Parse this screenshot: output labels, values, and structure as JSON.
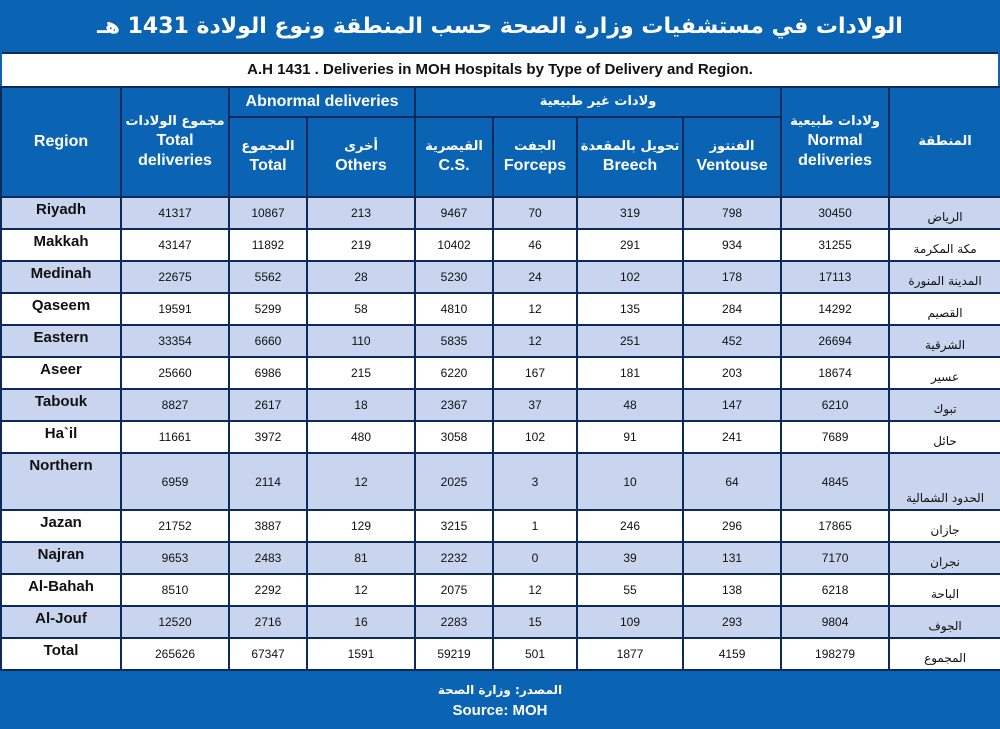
{
  "title_ar": "الولادات في مستشفيات وزارة الصحة حسب المنطقة ونوع الولادة 1431 هـ",
  "title_en": "A.H 1431 . Deliveries in MOH Hospitals by Type of Delivery and Region.",
  "header": {
    "region": "Region",
    "total_ar": "مجموع الولادات",
    "total_en": "Total deliveries",
    "abnormal_en": "Abnormal deliveries",
    "abnormal_ar": "ولادات غير طبيعية",
    "abn_total_ar": "المجموع",
    "abn_total_en": "Total",
    "others_ar": "أخرى",
    "others_en": "Others",
    "cs_ar": "القيصرية",
    "cs_en": "C.S.",
    "forceps_ar": "الجفت",
    "forceps_en": "Forceps",
    "breech_ar": "تحويل بالمقعدة",
    "breech_en": "Breech",
    "ventouse_ar": "الفنتوز",
    "ventouse_en": "Ventouse",
    "normal_ar": "ولادات طبيعية",
    "normal_en": "Normal deliveries",
    "region_ar": "المنطقة"
  },
  "rows": [
    {
      "region": "Riyadh",
      "total": "41317",
      "abn_total": "10867",
      "others": "213",
      "cs": "9467",
      "forceps": "70",
      "breech": "319",
      "ventouse": "798",
      "normal": "30450",
      "region_ar": "الرياض"
    },
    {
      "region": "Makkah",
      "total": "43147",
      "abn_total": "11892",
      "others": "219",
      "cs": "10402",
      "forceps": "46",
      "breech": "291",
      "ventouse": "934",
      "normal": "31255",
      "region_ar": "مكة المكرمة"
    },
    {
      "region": "Medinah",
      "total": "22675",
      "abn_total": "5562",
      "others": "28",
      "cs": "5230",
      "forceps": "24",
      "breech": "102",
      "ventouse": "178",
      "normal": "17113",
      "region_ar": "المدينة المنورة"
    },
    {
      "region": "Qaseem",
      "total": "19591",
      "abn_total": "5299",
      "others": "58",
      "cs": "4810",
      "forceps": "12",
      "breech": "135",
      "ventouse": "284",
      "normal": "14292",
      "region_ar": "القصيم"
    },
    {
      "region": "Eastern",
      "total": "33354",
      "abn_total": "6660",
      "others": "110",
      "cs": "5835",
      "forceps": "12",
      "breech": "251",
      "ventouse": "452",
      "normal": "26694",
      "region_ar": "الشرقية"
    },
    {
      "region": "Aseer",
      "total": "25660",
      "abn_total": "6986",
      "others": "215",
      "cs": "6220",
      "forceps": "167",
      "breech": "181",
      "ventouse": "203",
      "normal": "18674",
      "region_ar": "عسير"
    },
    {
      "region": "Tabouk",
      "total": "8827",
      "abn_total": "2617",
      "others": "18",
      "cs": "2367",
      "forceps": "37",
      "breech": "48",
      "ventouse": "147",
      "normal": "6210",
      "region_ar": "تبوك"
    },
    {
      "region": "Ha`il",
      "total": "11661",
      "abn_total": "3972",
      "others": "480",
      "cs": "3058",
      "forceps": "102",
      "breech": "91",
      "ventouse": "241",
      "normal": "7689",
      "region_ar": "حائل"
    },
    {
      "region": "Northern",
      "total": "6959",
      "abn_total": "2114",
      "others": "12",
      "cs": "2025",
      "forceps": "3",
      "breech": "10",
      "ventouse": "64",
      "normal": "4845",
      "region_ar": "الحدود الشمالية"
    },
    {
      "region": "Jazan",
      "total": "21752",
      "abn_total": "3887",
      "others": "129",
      "cs": "3215",
      "forceps": "1",
      "breech": "246",
      "ventouse": "296",
      "normal": "17865",
      "region_ar": "جازان"
    },
    {
      "region": "Najran",
      "total": "9653",
      "abn_total": "2483",
      "others": "81",
      "cs": "2232",
      "forceps": "0",
      "breech": "39",
      "ventouse": "131",
      "normal": "7170",
      "region_ar": "نجران"
    },
    {
      "region": "Al-Bahah",
      "total": "8510",
      "abn_total": "2292",
      "others": "12",
      "cs": "2075",
      "forceps": "12",
      "breech": "55",
      "ventouse": "138",
      "normal": "6218",
      "region_ar": "الباحة"
    },
    {
      "region": "Al-Jouf",
      "total": "12520",
      "abn_total": "2716",
      "others": "16",
      "cs": "2283",
      "forceps": "15",
      "breech": "109",
      "ventouse": "293",
      "normal": "9804",
      "region_ar": "الجوف"
    },
    {
      "region": "Total",
      "total": "265626",
      "abn_total": "67347",
      "others": "1591",
      "cs": "59219",
      "forceps": "501",
      "breech": "1877",
      "ventouse": "4159",
      "normal": "198279",
      "region_ar": "المجموع"
    }
  ],
  "footer": {
    "source_ar": "المصدر: وزارة الصحة",
    "source_en": "Source: MOH"
  },
  "colors": {
    "background": "#0a63b3",
    "row_shade": "#c9d5ee",
    "border": "#0d2a5c"
  }
}
